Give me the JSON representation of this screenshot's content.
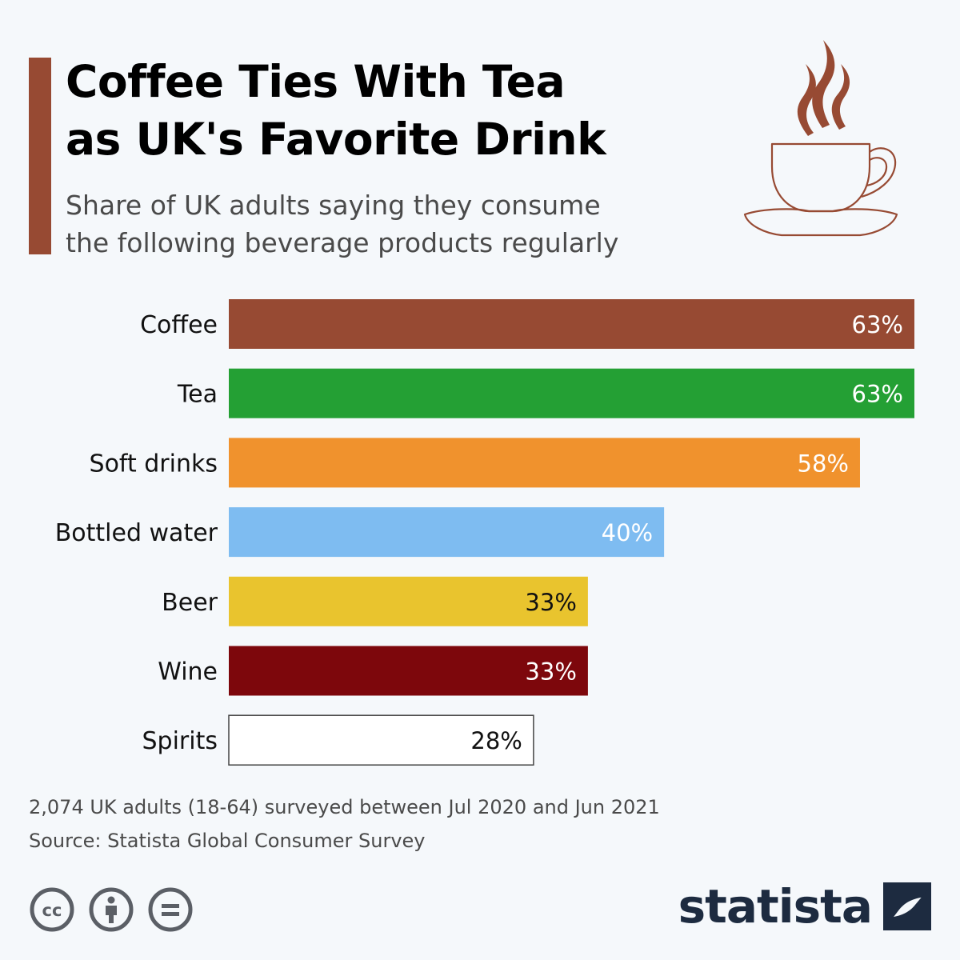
{
  "header": {
    "title_line1": "Coffee Ties With Tea",
    "title_line2": "as UK's Favorite Drink",
    "subtitle_line1": "Share of UK adults saying they consume",
    "subtitle_line2": "the following beverage products regularly",
    "accent_color": "#974a33",
    "icon": "coffee-cup-icon"
  },
  "chart_data": {
    "type": "bar",
    "orientation": "horizontal",
    "title": "Coffee Ties With Tea as UK's Favorite Drink",
    "subtitle": "Share of UK adults saying they consume the following beverage products regularly",
    "unit": "%",
    "xlim": [
      0,
      63
    ],
    "grid": false,
    "legend": "none",
    "categories": [
      "Coffee",
      "Tea",
      "Soft drinks",
      "Bottled water",
      "Beer",
      "Wine",
      "Spirits"
    ],
    "values": [
      63,
      63,
      58,
      40,
      33,
      33,
      28
    ],
    "labels": [
      "63%",
      "63%",
      "58%",
      "40%",
      "33%",
      "33%",
      "28%"
    ],
    "colors": [
      "#974a33",
      "#24a034",
      "#f0922d",
      "#7ebcf1",
      "#e9c42e",
      "#7d070c",
      "#ffffff"
    ],
    "label_colors": [
      "#ffffff",
      "#ffffff",
      "#ffffff",
      "#ffffff",
      "#111111",
      "#ffffff",
      "#111111"
    ]
  },
  "footer": {
    "note": "2,074 UK adults (18-64) surveyed between Jul 2020 and Jun 2021",
    "source": "Source: Statista Global Consumer Survey",
    "license_icons": [
      "cc-icon",
      "attribution-icon",
      "no-derivatives-icon"
    ],
    "brand": "statista",
    "brand_color": "#1d2b40"
  }
}
